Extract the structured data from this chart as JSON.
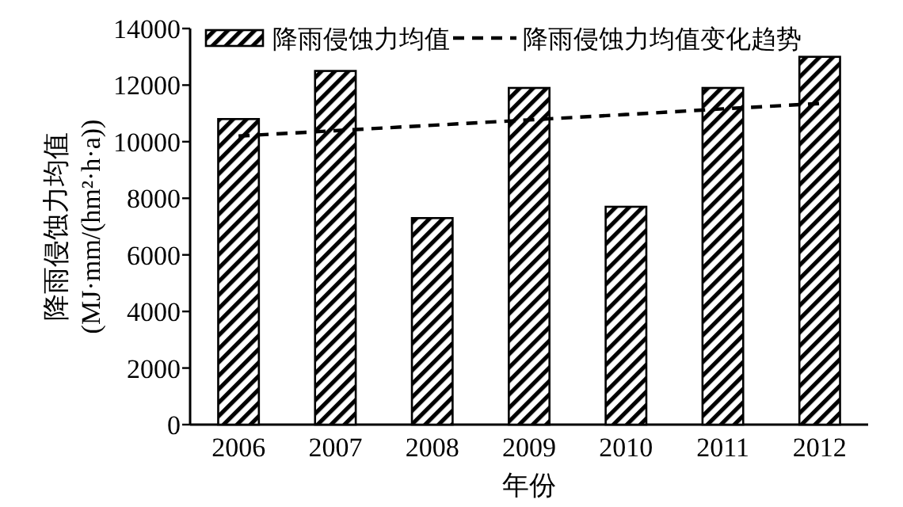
{
  "chart_data": {
    "type": "bar",
    "xlabel": "年份",
    "ylabel": "降雨侵蚀力均值\n(MJ·mm/(hm²·h·a))",
    "categories": [
      "2006",
      "2007",
      "2008",
      "2009",
      "2010",
      "2011",
      "2012"
    ],
    "series": [
      {
        "name": "降雨侵蚀力均值",
        "color": "#000000",
        "values": [
          10800,
          12500,
          7300,
          11900,
          7700,
          11900,
          13000
        ]
      },
      {
        "name": "降雨侵蚀力均值变化趋势",
        "type": "line",
        "color": "#000000",
        "line_style": "dashed",
        "marker": "none",
        "values": [
          10200,
          10390,
          10580,
          10770,
          10960,
          11160,
          11350
        ]
      }
    ],
    "ylim": [
      0,
      14000
    ],
    "yticks": [
      0,
      2000,
      4000,
      6000,
      8000,
      10000,
      12000,
      14000
    ],
    "grid": false,
    "legend": "top"
  }
}
